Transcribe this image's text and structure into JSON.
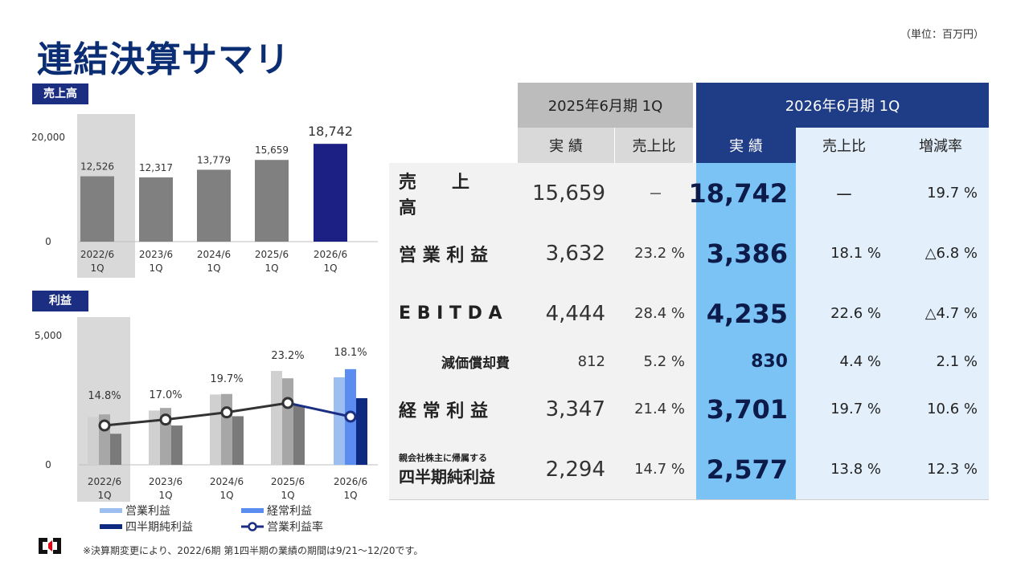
{
  "title": "連結決算サマリ",
  "unit": "（単位：百万円）",
  "colors": {
    "navy": "#1f3c86",
    "gray_bar": "#808080",
    "highlight_bar": "#1c2085",
    "op_2026": "#9cbef0",
    "ord_2026": "#5b8df0",
    "net_2026": "#0d2a80",
    "op_old": "#d0d0d0",
    "ord_old": "#a7a7a7",
    "net_old": "#7a7a7a",
    "line": "#333333",
    "line_last": "#1c2e82"
  },
  "sales_tag": "売上高",
  "profit_tag": "利益",
  "chart_data": [
    {
      "type": "bar",
      "title": "売上高",
      "categories": [
        "2022/6 1Q",
        "2023/6 1Q",
        "2024/6 1Q",
        "2025/6 1Q",
        "2026/6 1Q"
      ],
      "category_lines": [
        [
          "2022/6",
          "1Q"
        ],
        [
          "2023/6",
          "1Q"
        ],
        [
          "2024/6",
          "1Q"
        ],
        [
          "2025/6",
          "1Q"
        ],
        [
          "2026/6",
          "1Q"
        ]
      ],
      "values": [
        12526,
        12317,
        13779,
        15659,
        18742
      ],
      "labels": [
        "12,526",
        "12,317",
        "13,779",
        "15,659",
        "18,742"
      ],
      "yticks": [
        0,
        20000
      ],
      "ytick_labels": [
        "0",
        "20,000"
      ],
      "ylim": [
        0,
        20000
      ]
    },
    {
      "type": "bar",
      "title": "利益",
      "categories": [
        "2022/6 1Q",
        "2023/6 1Q",
        "2024/6 1Q",
        "2025/6 1Q",
        "2026/6 1Q"
      ],
      "category_lines": [
        [
          "2022/6",
          "1Q"
        ],
        [
          "2023/6",
          "1Q"
        ],
        [
          "2024/6",
          "1Q"
        ],
        [
          "2025/6",
          "1Q"
        ],
        [
          "2026/6",
          "1Q"
        ]
      ],
      "series": [
        {
          "name": "営業利益",
          "values": [
            1850,
            2100,
            2720,
            3632,
            3386
          ]
        },
        {
          "name": "経常利益",
          "values": [
            1950,
            2200,
            2740,
            3347,
            3701
          ]
        },
        {
          "name": "四半期純利益",
          "values": [
            1200,
            1520,
            1880,
            2294,
            2577
          ]
        }
      ],
      "line_series": {
        "name": "営業利益率",
        "values": [
          14.8,
          17.0,
          19.7,
          23.2,
          18.1
        ],
        "labels": [
          "14.8%",
          "17.0%",
          "19.7%",
          "23.2%",
          "18.1%"
        ]
      },
      "yticks": [
        0,
        5000
      ],
      "ytick_labels": [
        "0",
        "5,000"
      ],
      "ylim": [
        0,
        5000
      ]
    }
  ],
  "legend": [
    "営業利益",
    "経常利益",
    "四半期純利益",
    "営業利益率"
  ],
  "table": {
    "period_old": "2025年6月期 1Q",
    "period_new": "2026年6月期 1Q",
    "sub_old": [
      "実 績",
      "売上比"
    ],
    "sub_new": [
      "実 績",
      "売上比",
      "増減率"
    ],
    "rows": [
      {
        "label": "売　　上　　高",
        "sublabel": "",
        "old_val": "15,659",
        "old_pct": "－",
        "new_val": "18,742",
        "new_pct": "－",
        "change": "19.7 %"
      },
      {
        "label": "営 業 利 益",
        "sublabel": "",
        "old_val": "3,632",
        "old_pct": "23.2 %",
        "new_val": "3,386",
        "new_pct": "18.1 %",
        "change": "△6.8 %"
      },
      {
        "label": "E B I T D A",
        "sublabel": "",
        "old_val": "4,444",
        "old_pct": "28.4 %",
        "new_val": "4,235",
        "new_pct": "22.6 %",
        "change": "△4.7 %"
      },
      {
        "label": "減価償却費",
        "sublabel": "",
        "old_val": "812",
        "old_pct": "5.2 %",
        "new_val": "830",
        "new_pct": "4.4 %",
        "change": "2.1 %"
      },
      {
        "label": "経 常 利 益",
        "sublabel": "",
        "old_val": "3,347",
        "old_pct": "21.4 %",
        "new_val": "3,701",
        "new_pct": "19.7 %",
        "change": "10.6 %"
      },
      {
        "label": "四半期純利益",
        "sublabel": "親会社株主に帰属する",
        "old_val": "2,294",
        "old_pct": "14.7 %",
        "new_val": "2,577",
        "new_pct": "13.8 %",
        "change": "12.3 %"
      }
    ]
  },
  "footnote": "※決算期変更により、2022/6期 第1四半期の業績の期間は9/21～12/20です。"
}
